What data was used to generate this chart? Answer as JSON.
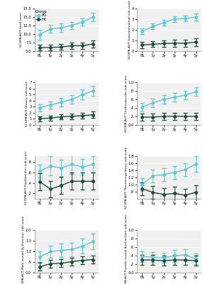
{
  "x_labels": [
    "BL",
    "1y",
    "2y",
    "3y",
    "4y",
    "5y"
  ],
  "x_vals": [
    0,
    1,
    2,
    3,
    4,
    5
  ],
  "plots": [
    {
      "ylabel": "SCOPA-AUT total score",
      "ylim": [
        5.0,
        17.5
      ],
      "yticks": [
        5.0,
        7.5,
        10.0,
        12.5,
        15.0,
        17.5
      ],
      "ytick_labels": [
        "5.0",
        "7.5",
        "10.0",
        "12.5",
        "15.0",
        "17.5"
      ],
      "pd_mean": [
        9.8,
        11.5,
        11.8,
        12.5,
        13.5,
        15.0
      ],
      "pd_err": [
        1.5,
        1.2,
        1.2,
        1.1,
        1.1,
        1.2
      ],
      "hc_mean": [
        5.9,
        6.0,
        6.1,
        6.5,
        6.5,
        7.0
      ],
      "hc_err": [
        0.8,
        0.8,
        0.8,
        0.9,
        0.9,
        1.0
      ]
    },
    {
      "ylabel": "SCOPA-AUT Gastrointestinal sub-score",
      "ylim": [
        0.0,
        4.0
      ],
      "yticks": [
        0,
        1,
        2,
        3,
        4
      ],
      "ytick_labels": [
        "0",
        "1",
        "2",
        "3",
        "4"
      ],
      "pd_mean": [
        1.85,
        2.3,
        2.65,
        3.0,
        3.05,
        3.2
      ],
      "pd_err": [
        0.28,
        0.28,
        0.28,
        0.28,
        0.28,
        0.32
      ],
      "hc_mean": [
        0.55,
        0.62,
        0.68,
        0.72,
        0.72,
        0.82
      ],
      "hc_err": [
        0.28,
        0.28,
        0.32,
        0.32,
        0.32,
        0.38
      ]
    },
    {
      "ylabel": "SCOPA-AUT Urinary sub-score",
      "ylim": [
        0.0,
        7.0
      ],
      "yticks": [
        0,
        1,
        2,
        3,
        4,
        5,
        6,
        7
      ],
      "ytick_labels": [
        "0",
        "1",
        "2",
        "3",
        "4",
        "5",
        "6",
        "7"
      ],
      "pd_mean": [
        2.8,
        3.3,
        3.7,
        4.2,
        5.0,
        5.6
      ],
      "pd_err": [
        0.6,
        0.6,
        0.7,
        0.7,
        0.8,
        0.85
      ],
      "hc_mean": [
        1.0,
        1.1,
        1.3,
        1.4,
        1.5,
        1.65
      ],
      "hc_err": [
        0.4,
        0.4,
        0.45,
        0.45,
        0.45,
        0.5
      ]
    },
    {
      "ylabel": "SCOPA-AUT Cardiovascular sub-score",
      "ylim": [
        0.0,
        1.0
      ],
      "yticks": [
        0.0,
        0.2,
        0.4,
        0.6,
        0.8,
        1.0
      ],
      "ytick_labels": [
        "0.0",
        ".2",
        ".4",
        ".6",
        ".8",
        "1.0"
      ],
      "pd_mean": [
        0.42,
        0.52,
        0.6,
        0.65,
        0.7,
        0.78
      ],
      "pd_err": [
        0.1,
        0.1,
        0.1,
        0.1,
        0.1,
        0.1
      ],
      "hc_mean": [
        0.18,
        0.18,
        0.2,
        0.2,
        0.2,
        0.2
      ],
      "hc_err": [
        0.08,
        0.08,
        0.08,
        0.08,
        0.08,
        0.08
      ]
    },
    {
      "ylabel": "SCOPA-AUT Pupillomotor sub-score",
      "ylim": [
        0.1,
        0.9
      ],
      "yticks": [
        0.2,
        0.4,
        0.6,
        0.8
      ],
      "ytick_labels": [
        ".2",
        ".4",
        ".6",
        ".8"
      ],
      "pd_mean": [
        0.62,
        0.72,
        0.68,
        0.75,
        0.7,
        0.75
      ],
      "pd_err": [
        0.12,
        0.18,
        0.16,
        0.18,
        0.15,
        0.15
      ],
      "hc_mean": [
        0.42,
        0.28,
        0.35,
        0.43,
        0.43,
        0.43
      ],
      "hc_err": [
        0.16,
        0.16,
        0.16,
        0.16,
        0.16,
        0.16
      ]
    },
    {
      "ylabel": "SCOPA-AUT Thermoregulatory sub-score",
      "ylim": [
        0.6,
        1.8
      ],
      "yticks": [
        0.8,
        1.0,
        1.2,
        1.4,
        1.6,
        1.8
      ],
      "ytick_labels": [
        ".8",
        "1.0",
        "1.2",
        "1.4",
        "1.6",
        "1.8"
      ],
      "pd_mean": [
        1.0,
        1.25,
        1.28,
        1.35,
        1.42,
        1.58
      ],
      "pd_err": [
        0.18,
        0.18,
        0.18,
        0.18,
        0.18,
        0.22
      ],
      "hc_mean": [
        0.88,
        0.78,
        0.72,
        0.75,
        0.7,
        0.78
      ],
      "hc_err": [
        0.18,
        0.18,
        0.18,
        0.18,
        0.18,
        0.2
      ]
    },
    {
      "ylabel": "SCOPA-AUT Male sexual dysfunction sub-score",
      "ylim": [
        0.0,
        2.0
      ],
      "yticks": [
        0.0,
        0.5,
        1.0,
        1.5,
        2.0
      ],
      "ytick_labels": [
        "0.0",
        ".5",
        "1.0",
        "1.5",
        "2.0"
      ],
      "pd_mean": [
        0.75,
        1.0,
        1.05,
        1.1,
        1.25,
        1.48
      ],
      "pd_err": [
        0.25,
        0.28,
        0.32,
        0.32,
        0.35,
        0.38
      ],
      "hc_mean": [
        0.28,
        0.42,
        0.45,
        0.52,
        0.58,
        0.62
      ],
      "hc_err": [
        0.18,
        0.18,
        0.18,
        0.18,
        0.18,
        0.18
      ]
    },
    {
      "ylabel": "SCOPA-AUT Female sexual dysfunction sub-score",
      "ylim": [
        0.0,
        1.0
      ],
      "yticks": [
        0.0,
        0.2,
        0.4,
        0.6,
        0.8,
        1.0
      ],
      "ytick_labels": [
        "0.0",
        ".2",
        ".4",
        ".6",
        ".8",
        "1.0"
      ],
      "pd_mean": [
        0.38,
        0.37,
        0.35,
        0.4,
        0.42,
        0.33
      ],
      "pd_err": [
        0.12,
        0.12,
        0.12,
        0.14,
        0.14,
        0.12
      ],
      "hc_mean": [
        0.3,
        0.3,
        0.28,
        0.3,
        0.3,
        0.28
      ],
      "hc_err": [
        0.12,
        0.12,
        0.12,
        0.12,
        0.12,
        0.12
      ]
    }
  ],
  "pd_color": "#5bc8d8",
  "hc_color": "#1a4a35",
  "bg_color": "#ffffff",
  "panel_bg": "#f0f0f0",
  "grid_color": "#ffffff",
  "capsize": 2,
  "linewidth": 1.0,
  "marker": "o",
  "markersize": 2.5,
  "elinewidth": 0.7
}
